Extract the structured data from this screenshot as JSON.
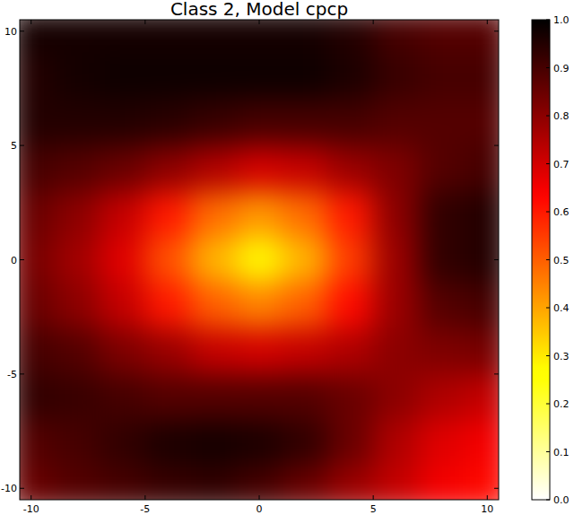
{
  "chart_data": {
    "type": "heatmap",
    "title": "Class 2, Model cpcp",
    "x": [
      -10,
      -8,
      -6,
      -4,
      -2,
      0,
      2,
      4,
      6,
      8,
      10
    ],
    "y": [
      10,
      8,
      6,
      4,
      2,
      0,
      -2,
      -4,
      -6,
      -8,
      -10
    ],
    "cells": [
      [
        0.97,
        0.97,
        0.97,
        0.97,
        0.97,
        0.97,
        0.97,
        0.95,
        0.9,
        0.88,
        0.88
      ],
      [
        0.95,
        0.97,
        0.98,
        0.98,
        0.98,
        0.98,
        0.98,
        0.96,
        0.92,
        0.9,
        0.9
      ],
      [
        0.95,
        0.95,
        0.95,
        0.94,
        0.92,
        0.9,
        0.9,
        0.9,
        0.88,
        0.88,
        0.88
      ],
      [
        0.9,
        0.88,
        0.85,
        0.8,
        0.75,
        0.7,
        0.72,
        0.78,
        0.82,
        0.88,
        0.9
      ],
      [
        0.85,
        0.8,
        0.72,
        0.6,
        0.48,
        0.42,
        0.48,
        0.6,
        0.8,
        0.93,
        0.95
      ],
      [
        0.83,
        0.77,
        0.68,
        0.52,
        0.38,
        0.28,
        0.38,
        0.55,
        0.78,
        0.93,
        0.95
      ],
      [
        0.85,
        0.8,
        0.72,
        0.6,
        0.5,
        0.45,
        0.5,
        0.62,
        0.78,
        0.88,
        0.9
      ],
      [
        0.9,
        0.88,
        0.82,
        0.78,
        0.72,
        0.7,
        0.72,
        0.75,
        0.8,
        0.82,
        0.83
      ],
      [
        0.93,
        0.92,
        0.9,
        0.88,
        0.88,
        0.88,
        0.88,
        0.85,
        0.8,
        0.75,
        0.72
      ],
      [
        0.88,
        0.9,
        0.93,
        0.96,
        0.97,
        0.96,
        0.93,
        0.85,
        0.75,
        0.68,
        0.65
      ],
      [
        0.85,
        0.88,
        0.9,
        0.92,
        0.93,
        0.9,
        0.85,
        0.78,
        0.72,
        0.65,
        0.62
      ]
    ],
    "xlim": [
      -10.5,
      10.5
    ],
    "ylim": [
      -10.5,
      10.5
    ],
    "xticks": [
      -10,
      -5,
      0,
      5,
      10
    ],
    "yticks": [
      -10,
      -5,
      0,
      5,
      10
    ],
    "color_range": [
      0,
      1
    ],
    "color_ticks": [
      {
        "value": 0,
        "label": "0.0"
      },
      0.1,
      0.2,
      0.3,
      0.4,
      0.5,
      0.6,
      0.7,
      0.8,
      0.9,
      {
        "value": 1,
        "label": "1.0"
      }
    ]
  }
}
